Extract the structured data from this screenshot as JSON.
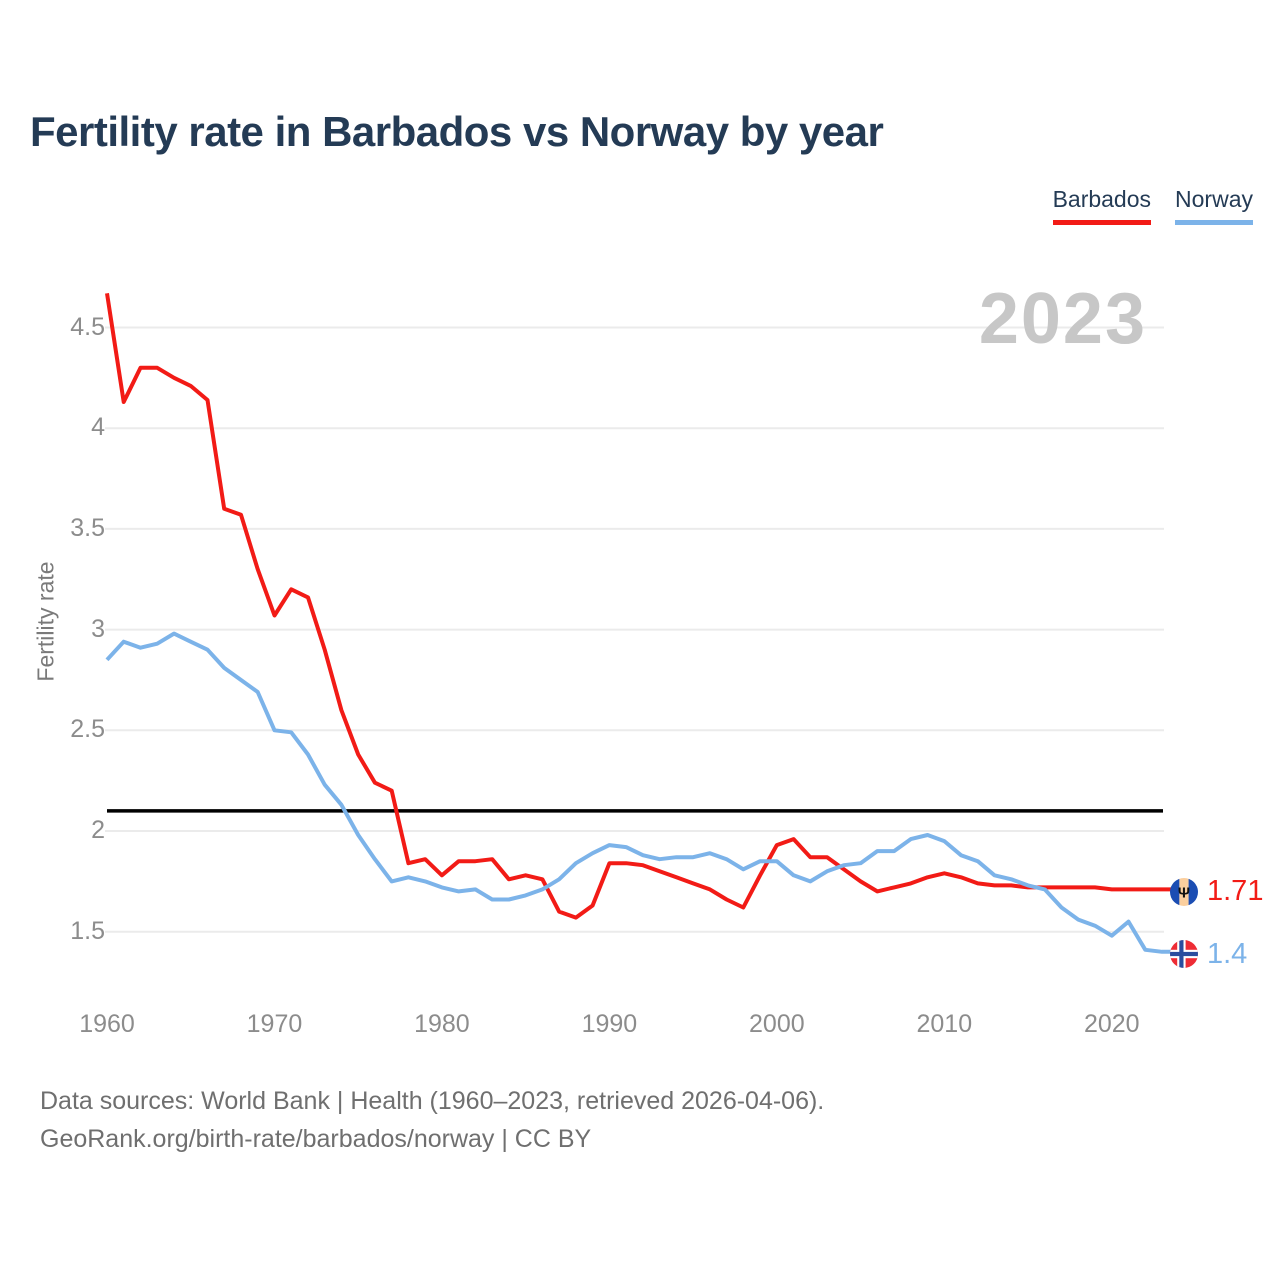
{
  "title": "Fertility rate in Barbados vs Norway by year",
  "watermark_year": "2023",
  "y_axis_label": "Fertility rate",
  "legend": {
    "items": [
      {
        "label": "Barbados",
        "color": "#f21b16"
      },
      {
        "label": "Norway",
        "color": "#7cb3e9"
      }
    ]
  },
  "end_labels": {
    "barbados": {
      "value": "1.71",
      "flag": "barbados-flag"
    },
    "norway": {
      "value": "1.4",
      "flag": "norway-flag"
    }
  },
  "footer": {
    "line1": "Data sources: World Bank | Health (1960–2023, retrieved 2026-04-06).",
    "line2": "GeoRank.org/birth-rate/barbados/norway | CC BY"
  },
  "chart_data": {
    "type": "line",
    "title": "Fertility rate in Barbados vs Norway by year",
    "xlabel": "",
    "ylabel": "Fertility rate",
    "grid": "horizontal",
    "legend_position": "top-right",
    "xlim": [
      1960,
      2023
    ],
    "ylim": [
      1.1,
      4.75
    ],
    "xticks": [
      1960,
      1970,
      1980,
      1990,
      2000,
      2010,
      2020
    ],
    "yticks": [
      4.5,
      4,
      3.5,
      3,
      2.5,
      2,
      1.5
    ],
    "reference_line": {
      "value": 2.1,
      "color": "#000000"
    },
    "years": [
      1960,
      1961,
      1962,
      1963,
      1964,
      1965,
      1966,
      1967,
      1968,
      1969,
      1970,
      1971,
      1972,
      1973,
      1974,
      1975,
      1976,
      1977,
      1978,
      1979,
      1980,
      1981,
      1982,
      1983,
      1984,
      1985,
      1986,
      1987,
      1988,
      1989,
      1990,
      1991,
      1992,
      1993,
      1994,
      1995,
      1996,
      1997,
      1998,
      1999,
      2000,
      2001,
      2002,
      2003,
      2004,
      2005,
      2006,
      2007,
      2008,
      2009,
      2010,
      2011,
      2012,
      2013,
      2014,
      2015,
      2016,
      2017,
      2018,
      2019,
      2020,
      2021,
      2022,
      2023
    ],
    "series": [
      {
        "name": "Barbados",
        "color": "#f21b16",
        "values": [
          4.67,
          4.13,
          4.3,
          4.3,
          4.25,
          4.21,
          4.14,
          3.6,
          3.57,
          3.3,
          3.07,
          3.2,
          3.16,
          2.9,
          2.6,
          2.38,
          2.24,
          2.2,
          1.84,
          1.86,
          1.78,
          1.85,
          1.85,
          1.86,
          1.76,
          1.78,
          1.76,
          1.6,
          1.57,
          1.63,
          1.84,
          1.84,
          1.83,
          1.8,
          1.77,
          1.74,
          1.71,
          1.66,
          1.62,
          1.78,
          1.93,
          1.96,
          1.87,
          1.87,
          1.81,
          1.75,
          1.7,
          1.72,
          1.74,
          1.77,
          1.79,
          1.77,
          1.74,
          1.73,
          1.73,
          1.72,
          1.72,
          1.72,
          1.72,
          1.72,
          1.71,
          1.71,
          1.71,
          1.71
        ]
      },
      {
        "name": "Norway",
        "color": "#7cb3e9",
        "values": [
          2.85,
          2.94,
          2.91,
          2.93,
          2.98,
          2.94,
          2.9,
          2.81,
          2.75,
          2.69,
          2.5,
          2.49,
          2.38,
          2.23,
          2.13,
          1.98,
          1.86,
          1.75,
          1.77,
          1.75,
          1.72,
          1.7,
          1.71,
          1.66,
          1.66,
          1.68,
          1.71,
          1.76,
          1.84,
          1.89,
          1.93,
          1.92,
          1.88,
          1.86,
          1.87,
          1.87,
          1.89,
          1.86,
          1.81,
          1.85,
          1.85,
          1.78,
          1.75,
          1.8,
          1.83,
          1.84,
          1.9,
          1.9,
          1.96,
          1.98,
          1.95,
          1.88,
          1.85,
          1.78,
          1.76,
          1.73,
          1.71,
          1.62,
          1.56,
          1.53,
          1.48,
          1.55,
          1.41,
          1.4
        ]
      }
    ]
  }
}
